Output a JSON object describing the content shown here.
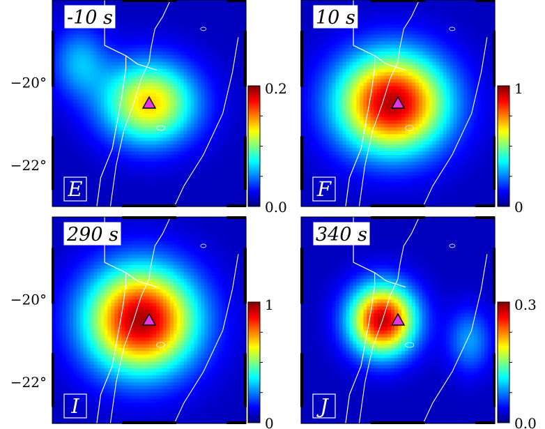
{
  "figure": {
    "y_axis_labels": [
      "−20°",
      "−22°"
    ]
  },
  "chart_data": [
    {
      "type": "heatmap",
      "panel_letter": "E",
      "time_label": "-10 s",
      "colorbar": {
        "min": 0,
        "max": 0.2,
        "min_label": "0.0",
        "max_label": "0.2"
      },
      "ylim": [
        -23,
        -18
      ],
      "yticks": [
        -22,
        -20
      ],
      "sources": [
        {
          "lat": -20.5,
          "lon_frac": 0.5,
          "peak": 0.13,
          "sx": 0.17,
          "sy": 0.14
        },
        {
          "lat": -19.5,
          "lon_frac": 0.14,
          "peak": 0.05,
          "sx": 0.1,
          "sy": 0.12
        }
      ],
      "station_marker": {
        "lat": -20.5,
        "lon_frac": 0.5,
        "color": "#e535e0"
      }
    },
    {
      "type": "heatmap",
      "panel_letter": "F",
      "time_label": "10 s",
      "colorbar": {
        "min": 0,
        "max": 1,
        "min_label": "0",
        "max_label": "1"
      },
      "ylim": [
        -23,
        -18
      ],
      "yticks": [
        -22,
        -20
      ],
      "sources": [
        {
          "lat": -20.5,
          "lon_frac": 0.47,
          "peak": 0.95,
          "sx": 0.2,
          "sy": 0.17
        }
      ],
      "station_marker": {
        "lat": -20.5,
        "lon_frac": 0.5,
        "color": "#e535e0"
      }
    },
    {
      "type": "heatmap",
      "panel_letter": "I",
      "time_label": "290 s",
      "colorbar": {
        "min": 0,
        "max": 1,
        "min_label": "0",
        "max_label": "1"
      },
      "ylim": [
        -23,
        -18
      ],
      "yticks": [
        -22,
        -20
      ],
      "sources": [
        {
          "lat": -20.5,
          "lon_frac": 0.46,
          "peak": 0.96,
          "sx": 0.2,
          "sy": 0.18
        }
      ],
      "station_marker": {
        "lat": -20.5,
        "lon_frac": 0.5,
        "color": "#e535e0"
      }
    },
    {
      "type": "heatmap",
      "panel_letter": "J",
      "time_label": "340 s",
      "colorbar": {
        "min": 0,
        "max": 0.3,
        "min_label": "0.0",
        "max_label": "0.3"
      },
      "ylim": [
        -23,
        -18
      ],
      "yticks": [
        -22,
        -20
      ],
      "sources": [
        {
          "lat": -20.5,
          "lon_frac": 0.42,
          "peak": 0.28,
          "sx": 0.12,
          "sy": 0.12
        },
        {
          "lat": -21.0,
          "lon_frac": 0.87,
          "peak": 0.07,
          "sx": 0.08,
          "sy": 0.11
        }
      ],
      "station_marker": {
        "lat": -20.5,
        "lon_frac": 0.5,
        "color": "#e535e0"
      }
    }
  ]
}
